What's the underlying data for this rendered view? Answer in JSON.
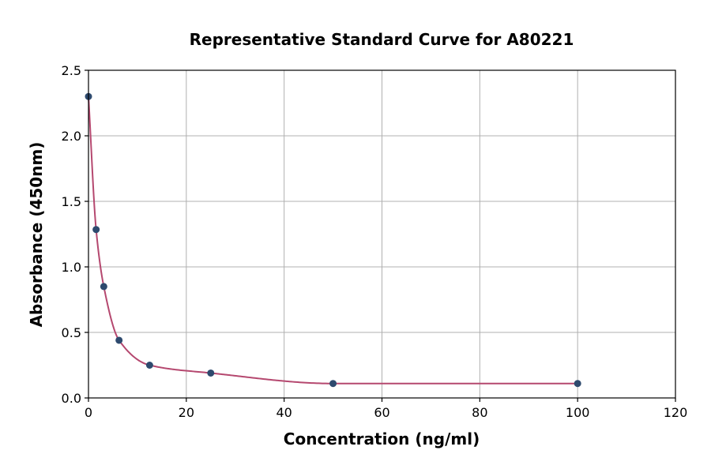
{
  "chart_data": {
    "type": "scatter",
    "title": "Representative Standard Curve for A80221",
    "xlabel": "Concentration (ng/ml)",
    "ylabel": "Absorbance (450nm)",
    "xlim": [
      0,
      120
    ],
    "ylim": [
      0,
      2.5
    ],
    "xticks": [
      "0",
      "20",
      "40",
      "60",
      "80",
      "100",
      "120"
    ],
    "yticks": [
      "0.0",
      "0.5",
      "1.0",
      "1.5",
      "2.0",
      "2.5"
    ],
    "grid": true,
    "series": [
      {
        "points": [
          {
            "x": 0,
            "y": 2.3
          },
          {
            "x": 1.56,
            "y": 1.285
          },
          {
            "x": 3.13,
            "y": 0.85
          },
          {
            "x": 6.25,
            "y": 0.44
          },
          {
            "x": 12.5,
            "y": 0.25
          },
          {
            "x": 25,
            "y": 0.19
          },
          {
            "x": 50,
            "y": 0.11
          },
          {
            "x": 100,
            "y": 0.11
          }
        ],
        "color": "#2e4a6e"
      }
    ],
    "fit_curve": {
      "color": "#b5486f",
      "x_range": [
        0,
        100
      ]
    }
  }
}
